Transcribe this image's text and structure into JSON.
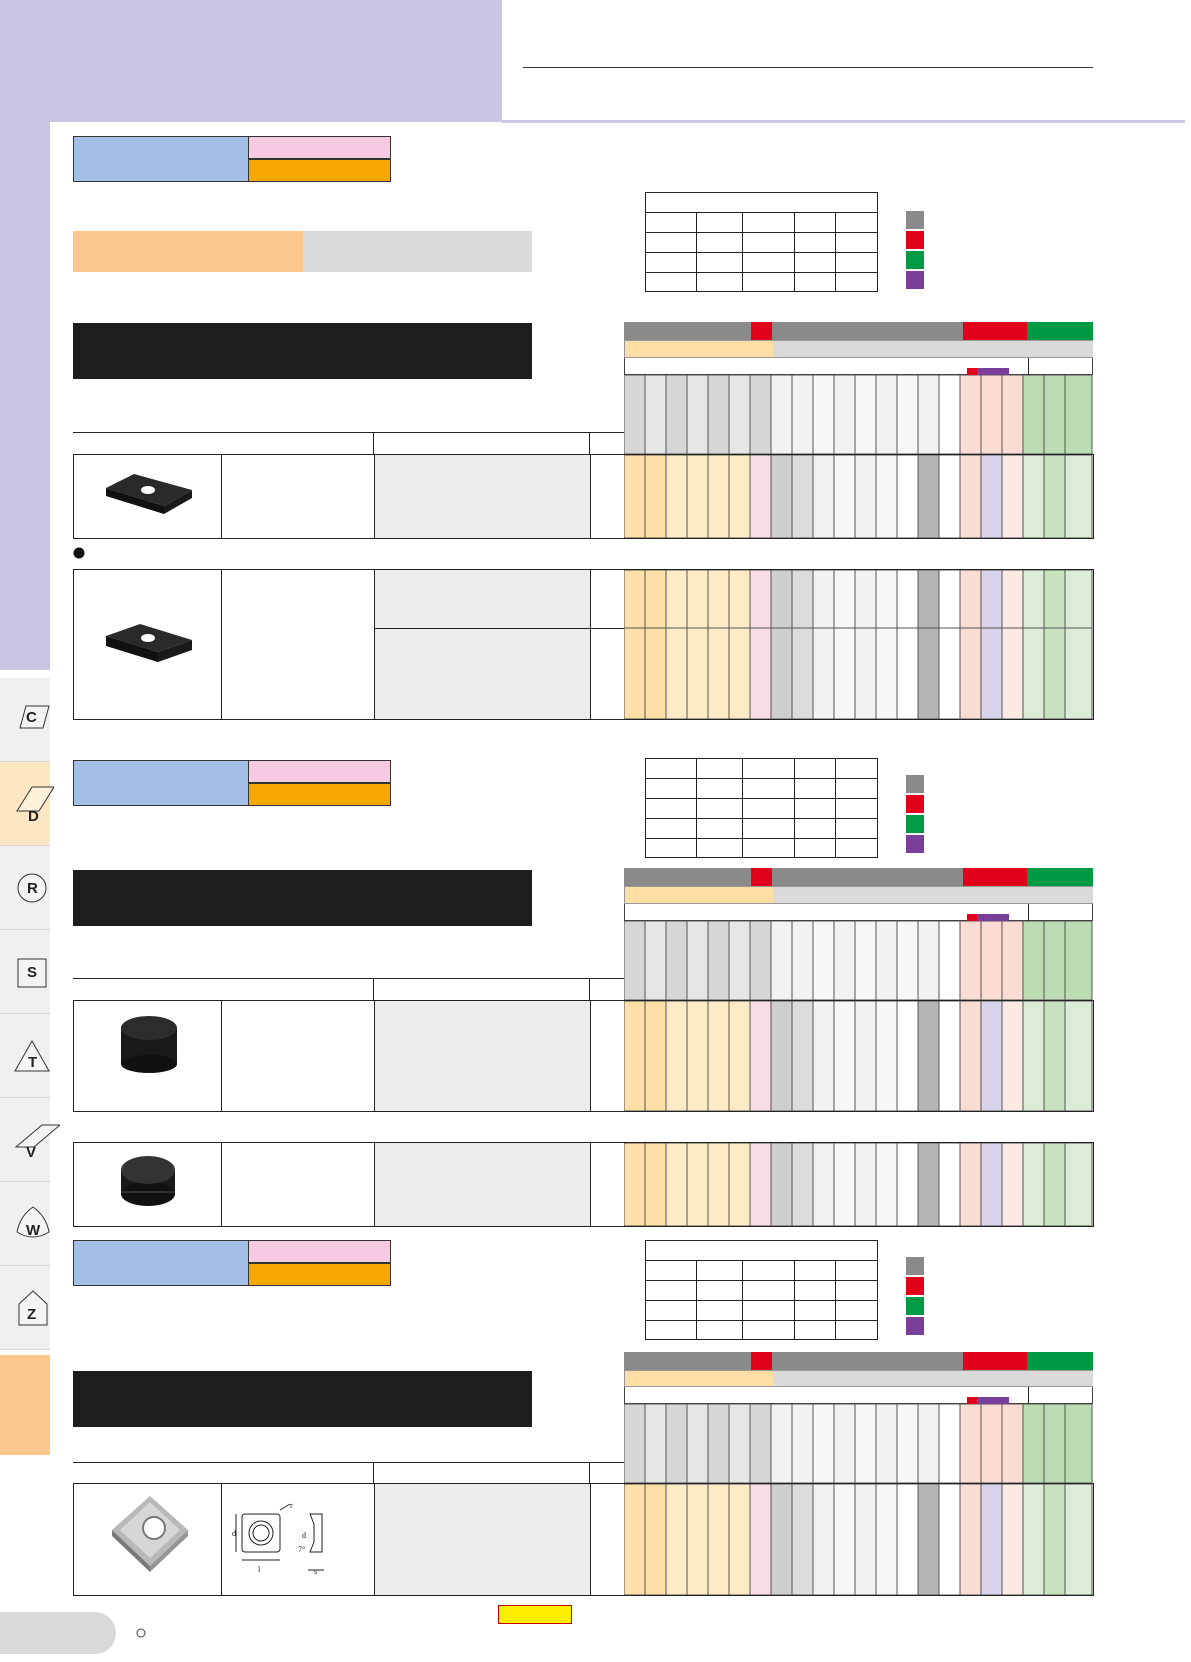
{
  "sidebar": {
    "tabs": [
      {
        "letter": "C",
        "shape": "rhombus"
      },
      {
        "letter": "D",
        "shape": "rhombus"
      },
      {
        "letter": "R",
        "shape": "circle"
      },
      {
        "letter": "S",
        "shape": "square"
      },
      {
        "letter": "T",
        "shape": "triangle"
      },
      {
        "letter": "V",
        "shape": "rhombus"
      },
      {
        "letter": "W",
        "shape": "trigon"
      },
      {
        "letter": "Z",
        "shape": "pentagon"
      }
    ]
  },
  "colors": {
    "header_bg": "#c9c5e3",
    "blue_box": "#a4bfe6",
    "pink_box": "#f6cbe1",
    "orange_box": "#f5a800",
    "peach_bar": "#fbc78c",
    "grey_bar": "#dadada",
    "title_black": "#1e1e1e",
    "legend_grey": "#8a8a8a",
    "legend_red": "#e2001a",
    "legend_green": "#009a44",
    "legend_purple": "#7a3f9a",
    "footer_yellow": "#ffee00"
  },
  "icons": {
    "footer_bullet": "circle-outline-icon",
    "section_bullet": "filled-dot-icon"
  }
}
